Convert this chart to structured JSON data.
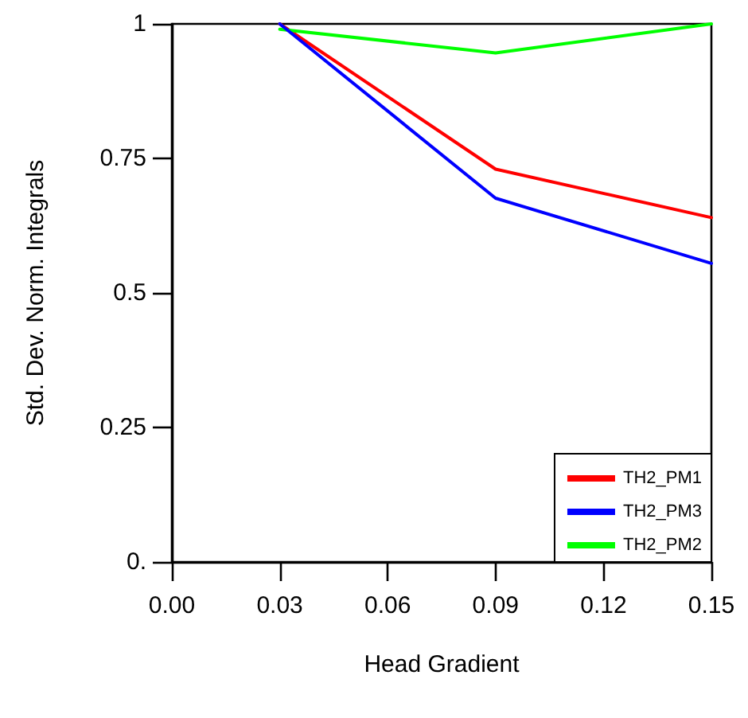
{
  "chart_data": {
    "type": "line",
    "xlabel": "Head Gradient",
    "ylabel": "Std. Dev. Norm. Integrals",
    "x": [
      0.03,
      0.09,
      0.15
    ],
    "series": [
      {
        "name": "TH2_PM1",
        "color": "#ff0000",
        "values": [
          1,
          0.73,
          0.64
        ]
      },
      {
        "name": "TH2_PM2",
        "color": "#00ff00",
        "values": [
          0.99,
          0.946,
          1
        ]
      },
      {
        "name": "TH2_PM3",
        "color": "#0000ff",
        "values": [
          1,
          0.676,
          0.555
        ]
      }
    ],
    "xlim": [
      0,
      0.15
    ],
    "xticks": [
      {
        "value": 0,
        "label": "0.00"
      },
      {
        "value": 0.03,
        "label": "0.03"
      },
      {
        "value": 0.06,
        "label": "0.06"
      },
      {
        "value": 0.09,
        "label": "0.09"
      },
      {
        "value": 0.12,
        "label": "0.12"
      },
      {
        "value": 0.15,
        "label": "0.15"
      }
    ],
    "ylim": [
      0,
      1
    ],
    "yticks": [
      {
        "value": 0,
        "label": "0."
      },
      {
        "value": 0.25,
        "label": "0.25"
      },
      {
        "value": 0.5,
        "label": "0.5"
      },
      {
        "value": 0.75,
        "label": "0.75"
      },
      1
    ],
    "grid": false,
    "legend": "bottom right",
    "marker": "none",
    "line_style": "solid"
  }
}
